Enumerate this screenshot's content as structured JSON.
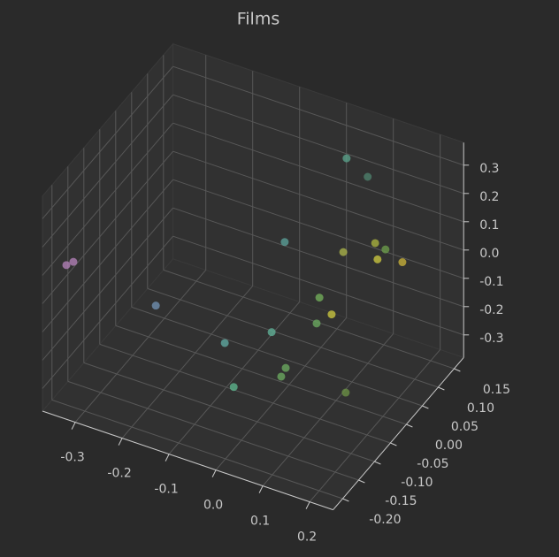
{
  "chart_data": {
    "type": "scatter3d",
    "title": "Films",
    "x": [
      -0.353,
      -0.338,
      -0.264,
      -0.049,
      0.004,
      0.017,
      -0.057,
      0.081,
      0.085,
      0.079,
      0.051,
      0.111,
      0.034,
      0.209,
      0.075,
      0.12,
      0.102,
      0.124,
      0.141,
      0.194
    ],
    "y": [
      -0.18,
      -0.18,
      -0.03,
      -0.13,
      -0.18,
      -0.08,
      0.07,
      -0.13,
      -0.15,
      -0.03,
      0.02,
      -0.03,
      0.12,
      -0.13,
      0.07,
      0.07,
      0.12,
      0.12,
      0.07,
      0.07
    ],
    "z": [
      0.08,
      0.1,
      -0.21,
      -0.09,
      -0.15,
      -0.08,
      0.0,
      -0.105,
      -0.107,
      -0.08,
      -0.07,
      -0.03,
      -0.05,
      -0.12,
      0.37,
      0.33,
      0.02,
      0.01,
      0.05,
      0.07
    ],
    "colors": [
      "#b07fb5",
      "#b07fb5",
      "#6f8faf",
      "#5fa8a0",
      "#5cb38c",
      "#5fae95",
      "#5a9e96",
      "#6aa85f",
      "#6aa85f",
      "#6aa85f",
      "#72ad5a",
      "#c8c440",
      "#a8b04a",
      "#6a8f45",
      "#5aa08a",
      "#4e7f6c",
      "#a8b03e",
      "#6a9a4a",
      "#c8c440",
      "#c4ae3a"
    ],
    "xlim": [
      -0.37,
      0.25
    ],
    "ylim": [
      -0.23,
      0.18
    ],
    "zlim": [
      -0.38,
      0.38
    ],
    "xticks": [
      -0.3,
      -0.2,
      -0.1,
      {
        "value": 0,
        "label": "0.0"
      },
      0.1,
      0.2
    ],
    "yticks": [
      {
        "value": -0.2,
        "label": "-0.20"
      },
      -0.15,
      {
        "value": -0.1,
        "label": "-0.10"
      },
      -0.05,
      {
        "value": 0,
        "label": "0.00"
      },
      0.05,
      {
        "value": 0.1,
        "label": "0.10"
      },
      0.15
    ],
    "zticks": [
      -0.3,
      -0.2,
      -0.1,
      {
        "value": 0,
        "label": "0.0"
      },
      0.1,
      0.2,
      0.3
    ],
    "grid": true
  }
}
